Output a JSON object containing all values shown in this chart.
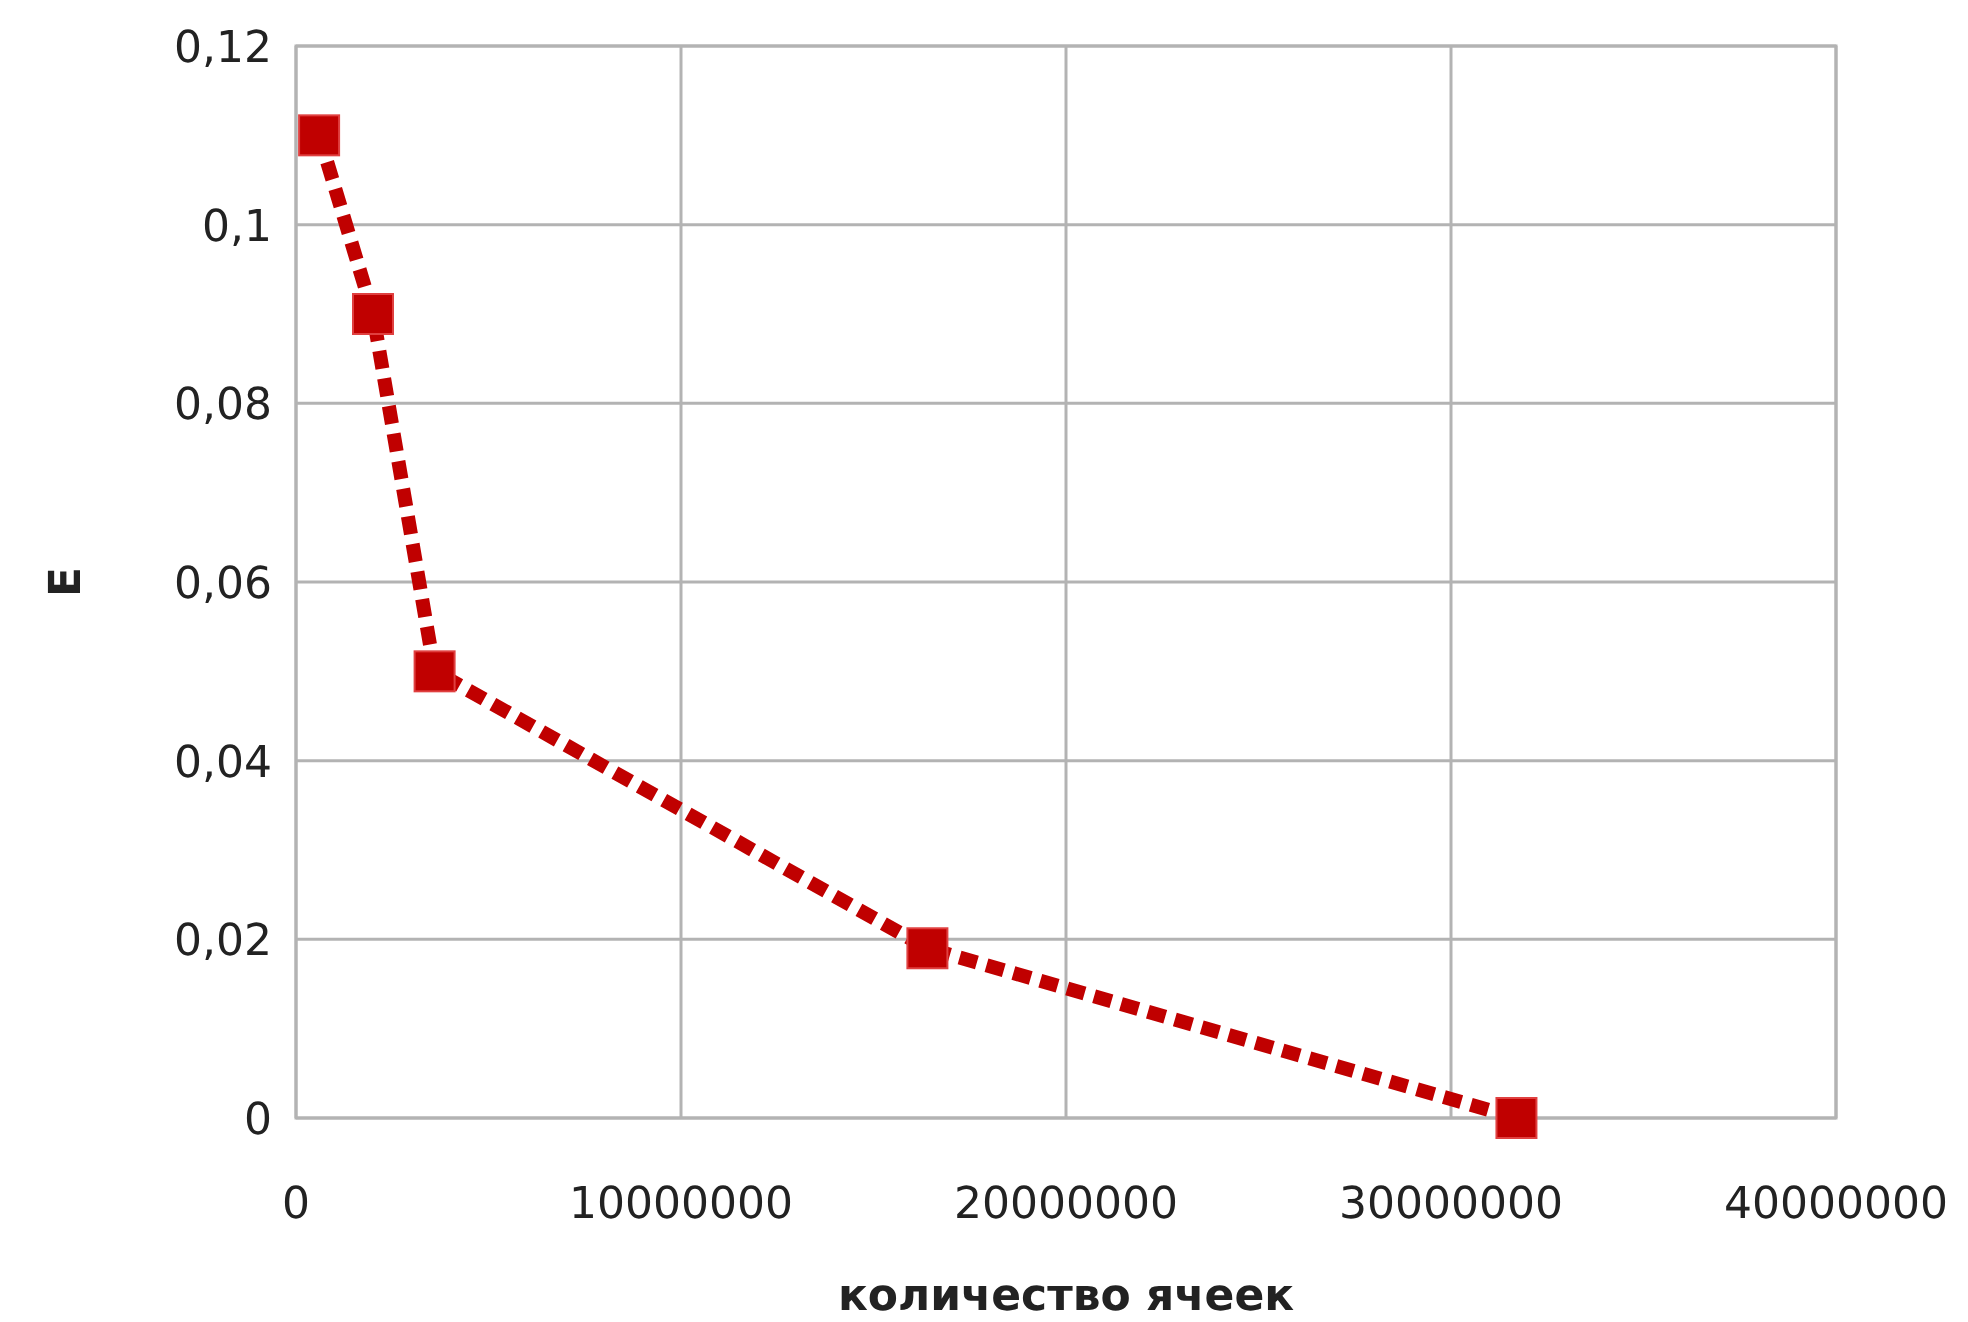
{
  "chart_data": {
    "type": "line",
    "xlabel": "количество ячеек",
    "ylabel": "E",
    "x": [
      600000,
      2000000,
      3600000,
      16400000,
      31700000
    ],
    "series": [
      {
        "color": "#c00000",
        "values": [
          0.11,
          0.09,
          0.05,
          0.019,
          0
        ]
      }
    ],
    "xlim": [
      0,
      40000000
    ],
    "xticks": [
      0,
      10000000,
      20000000,
      30000000,
      40000000
    ],
    "ylim": [
      0,
      0.12
    ],
    "yticks": [
      {
        "value": 0,
        "label": "0"
      },
      {
        "value": 0.02,
        "label": "0,02"
      },
      {
        "value": 0.04,
        "label": "0,04"
      },
      {
        "value": 0.06,
        "label": "0,06"
      },
      {
        "value": 0.08,
        "label": "0,08"
      },
      {
        "value": 0.1,
        "label": "0,1"
      },
      {
        "value": 0.12,
        "label": "0,12"
      }
    ],
    "grid": true,
    "marker": "square",
    "line_style": "dashed"
  }
}
